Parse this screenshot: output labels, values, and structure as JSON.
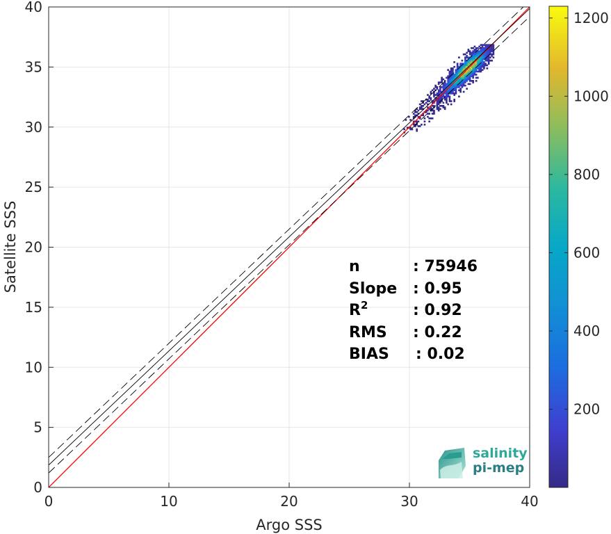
{
  "chart_data": {
    "type": "heatmap",
    "title": "",
    "xlabel": "Argo SSS",
    "ylabel": "Satellite SSS",
    "xlim": [
      0,
      40
    ],
    "ylim": [
      0,
      40
    ],
    "xticks": [
      "0",
      "10",
      "20",
      "30",
      "40"
    ],
    "yticks": [
      "0",
      "5",
      "10",
      "15",
      "20",
      "25",
      "30",
      "35",
      "40"
    ],
    "grid": true,
    "colorbar": {
      "range": [
        0,
        1230
      ],
      "ticks": [
        "200",
        "400",
        "600",
        "800",
        "1000",
        "1200"
      ],
      "colormap": "parula"
    },
    "density_cluster": {
      "center": [
        35.0,
        35.0
      ],
      "x_range": [
        29.5,
        37.0
      ],
      "y_range": [
        29.5,
        36.8
      ],
      "peak_count": 1200
    },
    "lines": [
      {
        "kind": "one-to-one",
        "color": "#ff0000",
        "style": "solid",
        "x": [
          0,
          40
        ],
        "y": [
          0,
          40
        ]
      },
      {
        "kind": "regression",
        "color": "#000000",
        "style": "solid",
        "x": [
          0,
          40
        ],
        "y": [
          1.86,
          39.86
        ]
      },
      {
        "kind": "upper-bound",
        "color": "#000000",
        "style": "dashed",
        "x": [
          0,
          40
        ],
        "y": [
          2.5,
          40.5
        ]
      },
      {
        "kind": "lower-bound",
        "color": "#000000",
        "style": "dashed",
        "x": [
          0,
          40
        ],
        "y": [
          1.2,
          39.2
        ]
      }
    ],
    "annotations": {
      "n_label": "n",
      "n_value": ": 75946",
      "slope_label": "Slope",
      "slope_value": ": 0.95",
      "r2_base": "R",
      "r2_sup": "2",
      "r2_value": ": 0.92",
      "rms_label": "RMS",
      "rms_value": ": 0.22",
      "bias_label": "BIAS",
      "bias_value": ": 0.02"
    }
  },
  "logo": {
    "line1": "salinity",
    "line2": "pi-mep"
  }
}
